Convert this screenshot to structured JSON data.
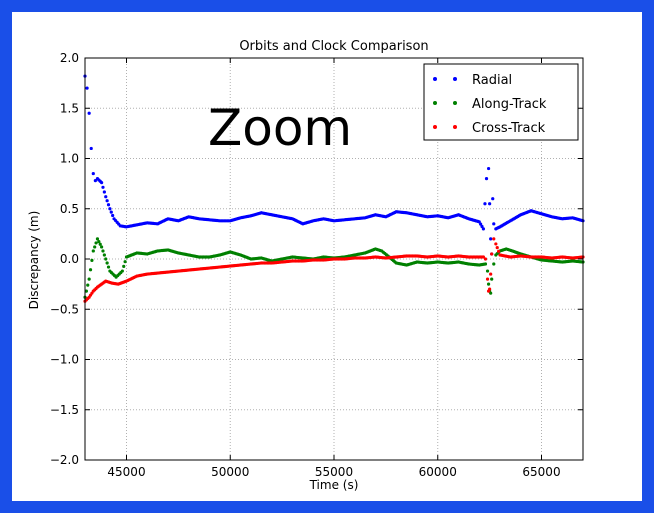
{
  "overlay_text": "Zoom",
  "chart_data": {
    "type": "scatter",
    "title": "Orbits and Clock Comparison",
    "xlabel": "Time (s)",
    "ylabel": "Discrepancy (m)",
    "xlim": [
      43000,
      67000
    ],
    "ylim": [
      -2.0,
      2.0
    ],
    "x_ticks": [
      45000,
      50000,
      55000,
      60000,
      65000
    ],
    "x_tick_labels": [
      "45000",
      "50000",
      "55000",
      "60000",
      "65000"
    ],
    "y_ticks": [
      2.0,
      1.5,
      1.0,
      0.5,
      0.0,
      -0.5,
      -1.0,
      -1.5,
      -2.0
    ],
    "y_tick_labels": [
      "2.0",
      "1.5",
      "1.0",
      "0.5",
      "0.0",
      "−0.5",
      "−1.0",
      "−1.5",
      "−2.0"
    ],
    "grid": true,
    "legend_position": "top-right",
    "series": [
      {
        "name": "Radial",
        "color": "#0000ff",
        "x": [
          43000,
          43100,
          43200,
          43300,
          43400,
          43500,
          43600,
          43800,
          44000,
          44200,
          44400,
          44700,
          45000,
          45500,
          46000,
          46500,
          47000,
          47500,
          48000,
          48500,
          49000,
          49500,
          50000,
          50500,
          51000,
          51500,
          52000,
          52500,
          53000,
          53500,
          54000,
          54500,
          55000,
          55500,
          56000,
          56500,
          57000,
          57500,
          58000,
          58500,
          59000,
          59500,
          60000,
          60500,
          61000,
          61500,
          62000,
          62200,
          62350,
          62400,
          62450,
          62500,
          62550,
          62600,
          62650,
          62700,
          62800,
          63000,
          63500,
          64000,
          64500,
          65000,
          65500,
          66000,
          66500,
          67000
        ],
        "y": [
          1.82,
          1.7,
          1.45,
          1.1,
          0.85,
          0.78,
          0.8,
          0.76,
          0.62,
          0.5,
          0.4,
          0.33,
          0.32,
          0.34,
          0.36,
          0.35,
          0.4,
          0.38,
          0.42,
          0.4,
          0.39,
          0.38,
          0.38,
          0.41,
          0.43,
          0.46,
          0.44,
          0.42,
          0.4,
          0.35,
          0.38,
          0.4,
          0.38,
          0.39,
          0.4,
          0.41,
          0.44,
          0.42,
          0.47,
          0.46,
          0.44,
          0.42,
          0.43,
          0.41,
          0.44,
          0.4,
          0.37,
          0.3,
          0.8,
          1.2,
          0.9,
          0.55,
          0.2,
          0.05,
          0.6,
          0.35,
          0.3,
          0.32,
          0.38,
          0.44,
          0.48,
          0.45,
          0.42,
          0.4,
          0.41,
          0.38
        ]
      },
      {
        "name": "Along-Track",
        "color": "#008000",
        "x": [
          43000,
          43200,
          43400,
          43600,
          43800,
          44000,
          44200,
          44500,
          44800,
          45000,
          45500,
          46000,
          46500,
          47000,
          47500,
          48000,
          48500,
          49000,
          49500,
          50000,
          50500,
          51000,
          51500,
          52000,
          52500,
          53000,
          53500,
          54000,
          54500,
          55000,
          55500,
          56000,
          56500,
          57000,
          57300,
          57600,
          58000,
          58500,
          59000,
          59500,
          60000,
          60500,
          61000,
          61500,
          62000,
          62300,
          62400,
          62450,
          62500,
          62550,
          62600,
          62700,
          62800,
          63000,
          63300,
          63600,
          64000,
          64500,
          65000,
          65500,
          66000,
          66500,
          67000
        ],
        "y": [
          -0.38,
          -0.2,
          0.08,
          0.2,
          0.12,
          0.0,
          -0.12,
          -0.18,
          -0.12,
          0.02,
          0.06,
          0.05,
          0.08,
          0.09,
          0.06,
          0.04,
          0.02,
          0.02,
          0.04,
          0.07,
          0.04,
          0.0,
          0.01,
          -0.02,
          0.0,
          0.02,
          0.01,
          0.0,
          0.02,
          0.01,
          0.02,
          0.04,
          0.06,
          0.1,
          0.08,
          0.03,
          -0.04,
          -0.06,
          -0.03,
          -0.04,
          -0.03,
          -0.04,
          -0.03,
          -0.05,
          -0.06,
          -0.05,
          -0.12,
          -0.25,
          -0.32,
          -0.34,
          -0.2,
          -0.05,
          0.04,
          0.08,
          0.1,
          0.08,
          0.05,
          0.02,
          -0.01,
          -0.02,
          -0.03,
          -0.02,
          -0.03
        ]
      },
      {
        "name": "Cross-Track",
        "color": "#ff0000",
        "x": [
          43000,
          43200,
          43400,
          43600,
          43800,
          44000,
          44300,
          44600,
          45000,
          45500,
          46000,
          46500,
          47000,
          47500,
          48000,
          48500,
          49000,
          49500,
          50000,
          50500,
          51000,
          51500,
          52000,
          52500,
          53000,
          53500,
          54000,
          54500,
          55000,
          55500,
          56000,
          56500,
          57000,
          57500,
          58000,
          58500,
          59000,
          59500,
          60000,
          60500,
          61000,
          61500,
          62000,
          62200,
          62300,
          62400,
          62450,
          62500,
          62550,
          62600,
          62700,
          62800,
          63000,
          63500,
          64000,
          64500,
          65000,
          65500,
          66000,
          66500,
          67000
        ],
        "y": [
          -0.42,
          -0.38,
          -0.32,
          -0.28,
          -0.25,
          -0.22,
          -0.24,
          -0.25,
          -0.22,
          -0.17,
          -0.15,
          -0.14,
          -0.13,
          -0.12,
          -0.11,
          -0.1,
          -0.09,
          -0.08,
          -0.07,
          -0.06,
          -0.05,
          -0.04,
          -0.04,
          -0.03,
          -0.02,
          -0.02,
          -0.01,
          -0.01,
          0.0,
          0.0,
          0.01,
          0.01,
          0.02,
          0.01,
          0.02,
          0.03,
          0.03,
          0.02,
          0.03,
          0.02,
          0.03,
          0.02,
          0.02,
          0.02,
          0.0,
          -0.2,
          -0.32,
          -0.3,
          -0.15,
          0.05,
          0.2,
          0.15,
          0.04,
          0.02,
          0.03,
          0.02,
          0.02,
          0.01,
          0.02,
          0.01,
          0.02
        ]
      }
    ]
  }
}
